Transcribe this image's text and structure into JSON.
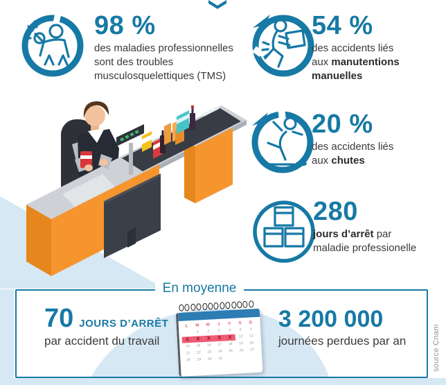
{
  "colors": {
    "accent": "#1779a5",
    "wave": "#d6e8f4",
    "orange": "#f6952e",
    "crimson": "#e1556d",
    "text": "#3a3a3c"
  },
  "stats": [
    {
      "value": "98 %",
      "lines": [
        {
          "pre": "des maladies professionnelles"
        },
        {
          "pre": "sont des troubles"
        },
        {
          "pre": "musculosquelettiques (TMS)"
        }
      ]
    },
    {
      "value": "54 %",
      "lines": [
        {
          "pre": "des accidents liés"
        },
        {
          "pre": "aux ",
          "bold": "manutentions"
        },
        {
          "bold": "manuelles"
        }
      ]
    },
    {
      "value": "20 %",
      "lines": [
        {
          "pre": "des accidents liés"
        },
        {
          "pre": "aux ",
          "bold": "chutes"
        }
      ]
    },
    {
      "value": "280",
      "lines": [
        {
          "bold": "jours d’arrêt",
          "post": " par"
        },
        {
          "pre": "maladie professionelle"
        }
      ]
    }
  ],
  "average": {
    "label": "En moyenne",
    "left": {
      "value": "70",
      "unit": "JOURS D’ARRÊT",
      "caption": "par accident du travail"
    },
    "right": {
      "value": "3 200 000",
      "caption": "journées perdues par an"
    }
  },
  "calendar": {
    "day_headers": [
      "L",
      "M",
      "M",
      "J",
      "V",
      "S",
      "D"
    ],
    "rows": [
      [
        "",
        "1",
        "2",
        "3",
        "4",
        "5",
        "6"
      ],
      [
        "X",
        "X",
        "X",
        "X",
        "X",
        "12",
        "13"
      ],
      [
        "14",
        "15",
        "16",
        "17",
        "18",
        "19",
        "20"
      ],
      [
        "21",
        "22",
        "23",
        "24",
        "25",
        "26",
        "27"
      ],
      [
        "28",
        "29",
        "30",
        "31",
        "",
        "",
        ""
      ]
    ]
  },
  "source": "source Cnam"
}
